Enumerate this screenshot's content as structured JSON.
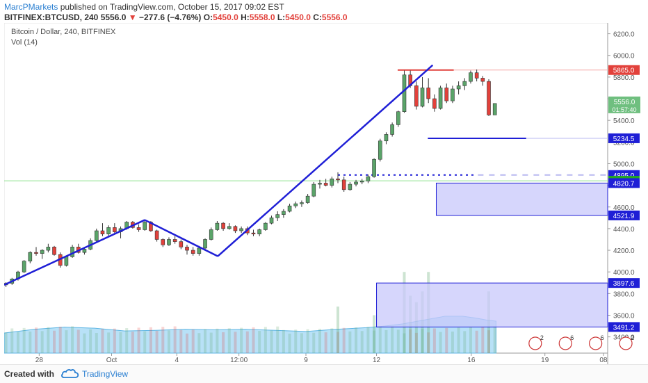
{
  "header": {
    "author": "MarcPMarkets",
    "published_text": "published on TradingView.com, October 15, 2017 09:02 EST",
    "symbol": "BITFINEX:BTCUSD, 240",
    "last": "5556.0",
    "change_arrow": "▼",
    "change": "−277.6 (−4.76%)",
    "ohlc_o_label": "O:",
    "ohlc_o": "5450.0",
    "ohlc_h_label": "H:",
    "ohlc_h": "5558.0",
    "ohlc_l_label": "L:",
    "ohlc_l": "5450.0",
    "ohlc_c_label": "C:",
    "ohlc_c": "5556.0"
  },
  "legend": {
    "title": "Bitcoin / Dollar, 240, BITFINEX",
    "volume": "Vol (14)"
  },
  "footer": {
    "created_with": "Created with",
    "brand": "TradingView"
  },
  "colors": {
    "up": "#5aa469",
    "down": "#e2413b",
    "drawing_blue": "#1f1fd6",
    "zone_fill": "#c8c8fb",
    "volume_area": "#7ec8f0"
  },
  "icons": [
    "cloud-logo-icon",
    "event-flag-icon"
  ],
  "chart_data": {
    "type": "candlestick",
    "ylim": [
      3250,
      6300
    ],
    "xlim": [
      0,
      100
    ],
    "yticks": [
      3400,
      3600,
      3800,
      4000,
      4200,
      4400,
      4600,
      4800,
      5000,
      5200,
      5400,
      5600,
      5800,
      6000,
      6200
    ],
    "ytick_labels": [
      "3400.0",
      "3600.0",
      "3800.0",
      "4000.0",
      "4200.0",
      "4400.0",
      "4600.0",
      "4800.0",
      "5000.0",
      "5200.0",
      "5400.0",
      "5600.0",
      "5800.0",
      "6000.0",
      "6200.0"
    ],
    "xticks": [
      5.8,
      17.8,
      28.6,
      38.9,
      50.0,
      61.7,
      77.4,
      89.6,
      99.3
    ],
    "xtick_labels": [
      "28",
      "Oct",
      "4",
      "12:00",
      "9",
      "12",
      "16",
      "19",
      "08"
    ],
    "candles": [
      [
        0.3,
        3880,
        3905,
        3860,
        3895
      ],
      [
        1.3,
        3895,
        3945,
        3880,
        3935
      ],
      [
        2.3,
        3935,
        4010,
        3920,
        4000
      ],
      [
        3.3,
        4000,
        4110,
        3990,
        4100
      ],
      [
        4.3,
        4100,
        4190,
        4080,
        4180
      ],
      [
        5.3,
        4180,
        4230,
        4150,
        4170
      ],
      [
        6.3,
        4170,
        4210,
        4120,
        4200
      ],
      [
        7.3,
        4200,
        4260,
        4180,
        4230
      ],
      [
        8.3,
        4230,
        4240,
        4150,
        4160
      ],
      [
        9.3,
        4160,
        4180,
        4040,
        4060
      ],
      [
        10.3,
        4060,
        4150,
        4050,
        4140
      ],
      [
        11.3,
        4140,
        4250,
        4130,
        4230
      ],
      [
        12.3,
        4230,
        4260,
        4170,
        4180
      ],
      [
        13.3,
        4180,
        4230,
        4160,
        4210
      ],
      [
        14.3,
        4210,
        4310,
        4200,
        4290
      ],
      [
        15.3,
        4290,
        4400,
        4280,
        4380
      ],
      [
        16.3,
        4380,
        4450,
        4330,
        4350
      ],
      [
        17.3,
        4350,
        4430,
        4330,
        4410
      ],
      [
        18.3,
        4410,
        4450,
        4350,
        4370
      ],
      [
        19.3,
        4370,
        4420,
        4310,
        4400
      ],
      [
        20.3,
        4400,
        4470,
        4390,
        4460
      ],
      [
        21.3,
        4460,
        4470,
        4400,
        4410
      ],
      [
        22.3,
        4410,
        4440,
        4370,
        4390
      ],
      [
        23.3,
        4390,
        4470,
        4380,
        4460
      ],
      [
        24.3,
        4460,
        4470,
        4370,
        4380
      ],
      [
        25.3,
        4380,
        4390,
        4280,
        4300
      ],
      [
        26.3,
        4300,
        4310,
        4230,
        4250
      ],
      [
        27.3,
        4250,
        4320,
        4240,
        4300
      ],
      [
        28.3,
        4300,
        4330,
        4260,
        4280
      ],
      [
        29.3,
        4280,
        4300,
        4210,
        4230
      ],
      [
        30.3,
        4230,
        4250,
        4160,
        4200
      ],
      [
        31.3,
        4200,
        4230,
        4150,
        4170
      ],
      [
        32.3,
        4170,
        4240,
        4150,
        4220
      ],
      [
        33.3,
        4220,
        4310,
        4210,
        4300
      ],
      [
        34.3,
        4300,
        4410,
        4290,
        4390
      ],
      [
        35.3,
        4390,
        4470,
        4380,
        4450
      ],
      [
        36.3,
        4450,
        4460,
        4380,
        4400
      ],
      [
        37.3,
        4400,
        4450,
        4390,
        4420
      ],
      [
        38.3,
        4420,
        4430,
        4360,
        4380
      ],
      [
        39.3,
        4380,
        4420,
        4360,
        4400
      ],
      [
        40.3,
        4400,
        4420,
        4340,
        4360
      ],
      [
        41.3,
        4360,
        4390,
        4330,
        4350
      ],
      [
        42.3,
        4350,
        4400,
        4330,
        4390
      ],
      [
        43.3,
        4390,
        4460,
        4380,
        4450
      ],
      [
        44.3,
        4450,
        4520,
        4440,
        4500
      ],
      [
        45.3,
        4500,
        4560,
        4470,
        4530
      ],
      [
        46.3,
        4530,
        4580,
        4500,
        4560
      ],
      [
        47.3,
        4560,
        4630,
        4550,
        4610
      ],
      [
        48.3,
        4610,
        4650,
        4590,
        4630
      ],
      [
        49.3,
        4630,
        4660,
        4600,
        4640
      ],
      [
        50.3,
        4640,
        4720,
        4630,
        4700
      ],
      [
        51.3,
        4700,
        4830,
        4690,
        4810
      ],
      [
        52.3,
        4810,
        4850,
        4770,
        4820
      ],
      [
        53.3,
        4820,
        4860,
        4790,
        4800
      ],
      [
        54.3,
        4800,
        4880,
        4780,
        4860
      ],
      [
        55.3,
        4860,
        4920,
        4820,
        4850
      ],
      [
        56.3,
        4850,
        4880,
        4740,
        4760
      ],
      [
        57.3,
        4760,
        4830,
        4750,
        4810
      ],
      [
        58.3,
        4810,
        4850,
        4790,
        4830
      ],
      [
        59.3,
        4830,
        4860,
        4810,
        4840
      ],
      [
        60.3,
        4840,
        4900,
        4820,
        4880
      ],
      [
        61.3,
        4880,
        5050,
        4870,
        5040
      ],
      [
        62.3,
        5040,
        5230,
        5020,
        5210
      ],
      [
        63.3,
        5210,
        5290,
        5180,
        5270
      ],
      [
        64.3,
        5270,
        5380,
        5250,
        5360
      ],
      [
        65.3,
        5360,
        5490,
        5340,
        5480
      ],
      [
        66.3,
        5480,
        5860,
        5470,
        5820
      ],
      [
        67.3,
        5820,
        5860,
        5700,
        5720
      ],
      [
        68.3,
        5720,
        5760,
        5500,
        5530
      ],
      [
        69.3,
        5530,
        5800,
        5520,
        5700
      ],
      [
        70.3,
        5700,
        5790,
        5560,
        5600
      ],
      [
        71.3,
        5600,
        5640,
        5480,
        5510
      ],
      [
        72.3,
        5510,
        5720,
        5500,
        5700
      ],
      [
        73.3,
        5700,
        5740,
        5560,
        5580
      ],
      [
        74.3,
        5580,
        5720,
        5560,
        5690
      ],
      [
        75.3,
        5690,
        5760,
        5640,
        5720
      ],
      [
        76.3,
        5720,
        5790,
        5680,
        5760
      ],
      [
        77.3,
        5760,
        5860,
        5740,
        5840
      ],
      [
        78.3,
        5840,
        5870,
        5760,
        5790
      ],
      [
        79.3,
        5790,
        5810,
        5720,
        5760
      ],
      [
        80.3,
        5760,
        5780,
        5440,
        5450
      ],
      [
        81.3,
        5450,
        5558,
        5450,
        5556
      ]
    ],
    "volume_area": [
      [
        0,
        3435
      ],
      [
        5,
        3470
      ],
      [
        10,
        3490
      ],
      [
        15,
        3480
      ],
      [
        20,
        3455
      ],
      [
        25,
        3460
      ],
      [
        30,
        3470
      ],
      [
        35,
        3465
      ],
      [
        40,
        3470
      ],
      [
        45,
        3460
      ],
      [
        50,
        3450
      ],
      [
        55,
        3470
      ],
      [
        60,
        3485
      ],
      [
        63,
        3500
      ],
      [
        66,
        3520
      ],
      [
        70,
        3560
      ],
      [
        73,
        3590
      ],
      [
        76,
        3590
      ],
      [
        78,
        3575
      ],
      [
        80,
        3555
      ],
      [
        81.5,
        3545
      ]
    ],
    "volume_bars_tall": [
      [
        55.3,
        3680
      ],
      [
        61.3,
        3600
      ],
      [
        66.3,
        4000
      ],
      [
        67.3,
        3780
      ],
      [
        68.3,
        3720
      ],
      [
        69.3,
        3820
      ],
      [
        70.3,
        4000
      ],
      [
        80.3,
        3820
      ]
    ],
    "horizontal_levels": [
      {
        "label": "5865.0",
        "y": 5865,
        "color": "#e2413b"
      },
      {
        "label": "5234.5",
        "y": 5234.5,
        "color": "#1f1fd6"
      },
      {
        "label": "4895.0",
        "y": 4895,
        "color": "#1f1fd6"
      },
      {
        "label": "4841.9",
        "y": 4841.9,
        "color": "#22a622"
      },
      {
        "label": "4820.7",
        "y": 4820.7,
        "color": "#1f1fd6"
      },
      {
        "label": "4521.9",
        "y": 4521.9,
        "color": "#1f1fd6"
      },
      {
        "label": "3897.6",
        "y": 3897.6,
        "color": "#1f1fd6"
      },
      {
        "label": "3491.2",
        "y": 3491.2,
        "color": "#1f1fd6"
      }
    ],
    "price_label": {
      "value": "5556.0",
      "countdown": "01:57:40",
      "y": 5556
    },
    "zones": [
      {
        "x0": 71.6,
        "x1": 105,
        "y0": 4521.9,
        "y1": 4820.7
      },
      {
        "x0": 61.7,
        "x1": 105,
        "y0": 3491.2,
        "y1": 3897.6
      }
    ],
    "trend_lines": [
      {
        "x0": 0,
        "y0": 3880,
        "x1": 23.3,
        "y1": 4480
      },
      {
        "x0": 23.3,
        "y0": 4480,
        "x1": 35.4,
        "y1": 4145
      },
      {
        "x0": 35.4,
        "y0": 4145,
        "x1": 71.0,
        "y1": 5910
      }
    ],
    "event_flags": [
      {
        "x": 88,
        "label": "2"
      },
      {
        "x": 93,
        "label": "6"
      },
      {
        "x": 98,
        "label": "6"
      },
      {
        "x": 103,
        "label": "2"
      }
    ]
  }
}
